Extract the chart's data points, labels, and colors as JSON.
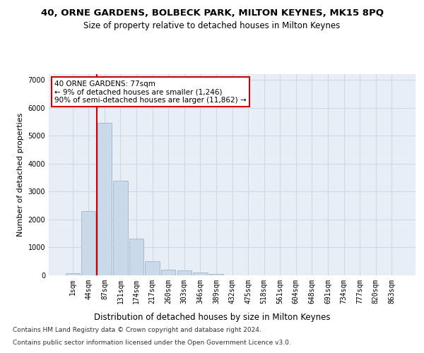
{
  "title_line1": "40, ORNE GARDENS, BOLBECK PARK, MILTON KEYNES, MK15 8PQ",
  "title_line2": "Size of property relative to detached houses in Milton Keynes",
  "xlabel": "Distribution of detached houses by size in Milton Keynes",
  "ylabel": "Number of detached properties",
  "footer_line1": "Contains HM Land Registry data © Crown copyright and database right 2024.",
  "footer_line2": "Contains public sector information licensed under the Open Government Licence v3.0.",
  "bar_labels": [
    "1sqm",
    "44sqm",
    "87sqm",
    "131sqm",
    "174sqm",
    "217sqm",
    "260sqm",
    "303sqm",
    "346sqm",
    "389sqm",
    "432sqm",
    "475sqm",
    "518sqm",
    "561sqm",
    "604sqm",
    "648sqm",
    "691sqm",
    "734sqm",
    "777sqm",
    "820sqm",
    "863sqm"
  ],
  "bar_values": [
    80,
    2300,
    5450,
    3380,
    1310,
    500,
    200,
    170,
    100,
    55,
    10,
    5,
    3,
    2,
    1,
    1,
    0,
    0,
    0,
    0,
    0
  ],
  "bar_color": "#c9d9ea",
  "bar_edgecolor": "#aabccc",
  "grid_color": "#d0d8e8",
  "background_color": "#e8eef5",
  "vline_color": "#cc0000",
  "vline_x": 1.5,
  "annotation_text": "40 ORNE GARDENS: 77sqm\n← 9% of detached houses are smaller (1,246)\n90% of semi-detached houses are larger (11,862) →",
  "annotation_box_color": "#ffffff",
  "annotation_box_edgecolor": "#cc0000",
  "ylim": [
    0,
    7200
  ],
  "yticks": [
    0,
    1000,
    2000,
    3000,
    4000,
    5000,
    6000,
    7000
  ],
  "title_fontsize": 9.5,
  "subtitle_fontsize": 8.5,
  "axis_label_fontsize": 8,
  "tick_fontsize": 7,
  "annotation_fontsize": 7.5,
  "footer_fontsize": 6.5
}
